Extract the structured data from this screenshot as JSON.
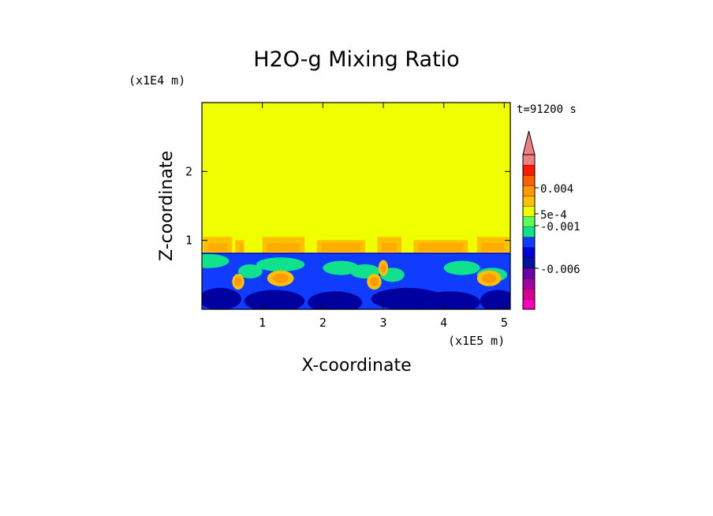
{
  "chart_data": {
    "type": "heatmap",
    "title": "H2O-g Mixing Ratio",
    "xlabel": "X-coordinate",
    "ylabel": "Z-coordinate",
    "x_scale_label": "(x1E5 m)",
    "y_scale_label": "(x1E4 m)",
    "time_label": "t=91200 s",
    "xlim": [
      0,
      5.1
    ],
    "ylim": [
      0,
      3
    ],
    "x_ticks": [
      "1",
      "2",
      "3",
      "4",
      "5"
    ],
    "y_ticks": [
      "1",
      "2"
    ],
    "colorbar": {
      "labels": [
        "0.004",
        "5e-4",
        "-0.001",
        "-0.006"
      ],
      "colors": [
        "#ff00bf",
        "#d60090",
        "#a0009f",
        "#6a00a8",
        "#00139a",
        "#0000d8",
        "#0f3cff",
        "#0fe18c",
        "#5aff5a",
        "#f0ff00",
        "#ffc000",
        "#ff9b00",
        "#ff6000",
        "#ff1c00",
        "#f08080"
      ]
    },
    "regions": [
      {
        "name": "upper layer",
        "z_range": [
          0.82,
          3.0
        ],
        "level_color": "#f0ff00"
      },
      {
        "name": "transition layer",
        "z_range": [
          0.82,
          1.05
        ],
        "level_color": "#ffc000"
      },
      {
        "name": "lower layer",
        "z_range": [
          0,
          0.82
        ],
        "level_color": "#0f3cff"
      }
    ]
  }
}
